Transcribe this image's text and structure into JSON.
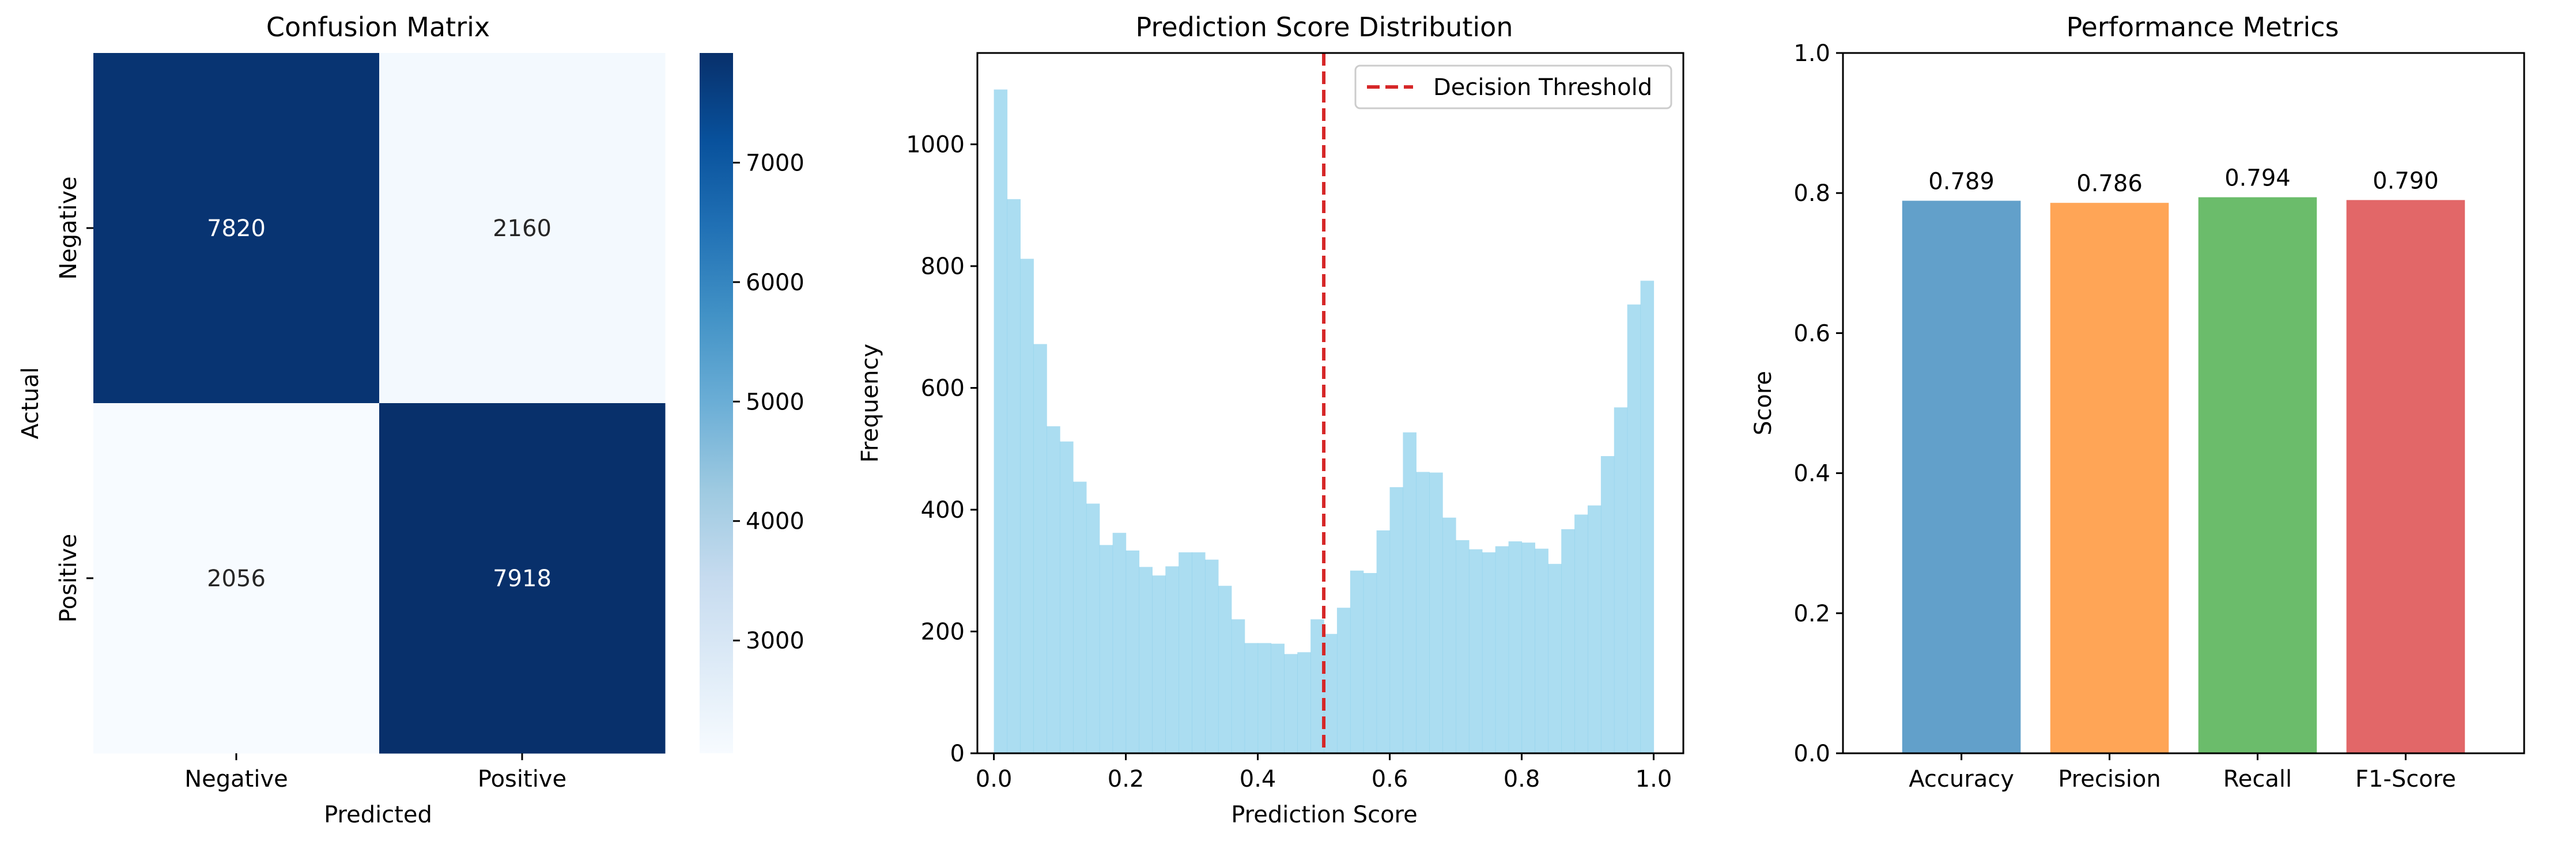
{
  "chart_data": [
    {
      "type": "heatmap",
      "title": "Confusion Matrix",
      "xlabel": "Predicted",
      "ylabel": "Actual",
      "x_categories": [
        "Negative",
        "Positive"
      ],
      "y_categories": [
        "Negative",
        "Positive"
      ],
      "values": [
        [
          7820,
          2160
        ],
        [
          2056,
          7918
        ]
      ],
      "value_labels": [
        [
          "7820",
          "2160"
        ],
        [
          "2056",
          "7918"
        ]
      ],
      "colorbar": {
        "range": [
          2056,
          7918
        ],
        "ticks": [
          3000,
          4000,
          5000,
          6000,
          7000
        ],
        "tick_labels": [
          "3000",
          "4000",
          "5000",
          "6000",
          "7000"
        ],
        "colormap": "Blues"
      },
      "colors": {
        "low": "#f7fbff",
        "high": "#08306b"
      }
    },
    {
      "type": "bar",
      "title": "Prediction Score Distribution",
      "xlabel": "Prediction Score",
      "ylabel": "Frequency",
      "bins": 50,
      "bin_range": [
        0,
        1
      ],
      "values": [
        1090,
        910,
        812,
        672,
        537,
        512,
        446,
        410,
        342,
        362,
        333,
        306,
        292,
        307,
        330,
        330,
        318,
        275,
        220,
        181,
        181,
        180,
        163,
        166,
        220,
        196,
        239,
        300,
        296,
        366,
        437,
        527,
        462,
        461,
        387,
        350,
        335,
        330,
        340,
        348,
        346,
        336,
        311,
        368,
        392,
        407,
        488,
        568,
        737,
        776
      ],
      "xlim": [
        -0.025,
        1.045
      ],
      "ylim": [
        0,
        1150
      ],
      "xticks": [
        0.0,
        0.2,
        0.4,
        0.6,
        0.8,
        1.0
      ],
      "xtick_labels": [
        "0.0",
        "0.2",
        "0.4",
        "0.6",
        "0.8",
        "1.0"
      ],
      "yticks": [
        0,
        200,
        400,
        600,
        800,
        1000
      ],
      "ytick_labels": [
        "0",
        "200",
        "400",
        "600",
        "800",
        "1000"
      ],
      "threshold": 0.5,
      "legend": [
        {
          "label": "Decision Threshold",
          "style": "dashed",
          "color": "#d62728"
        }
      ],
      "legend_position": "top-right",
      "colors": {
        "bar": "#87ceeb",
        "threshold": "#d62728"
      }
    },
    {
      "type": "bar",
      "title": "Performance Metrics",
      "xlabel": "",
      "ylabel": "Score",
      "categories": [
        "Accuracy",
        "Precision",
        "Recall",
        "F1-Score"
      ],
      "values": [
        0.789,
        0.786,
        0.794,
        0.79
      ],
      "value_labels": [
        "0.789",
        "0.786",
        "0.794",
        "0.790"
      ],
      "ylim": [
        0,
        1
      ],
      "yticks": [
        0.0,
        0.2,
        0.4,
        0.6,
        0.8,
        1.0
      ],
      "ytick_labels": [
        "0.0",
        "0.2",
        "0.4",
        "0.6",
        "0.8",
        "1.0"
      ],
      "colors": [
        "#1f77b4",
        "#ff7f0e",
        "#2ca02c",
        "#d62728"
      ]
    }
  ]
}
